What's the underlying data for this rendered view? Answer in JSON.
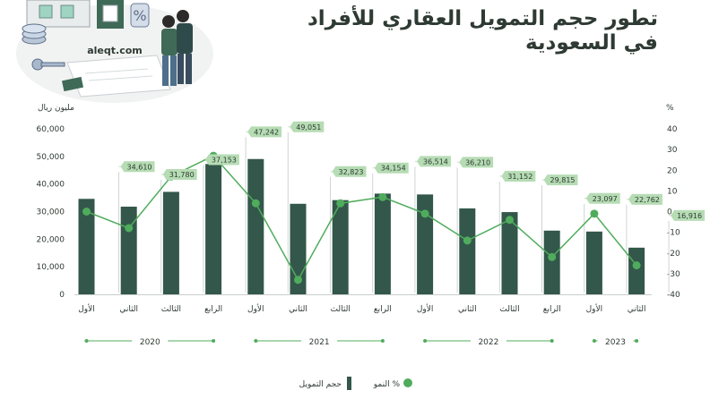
{
  "header": {
    "title_line1": "تطور حجم التمويل العقاري للأفراد",
    "title_line2": "في السعودية",
    "site": "aleqt.com"
  },
  "colors": {
    "bar": "#33574a",
    "line": "#4fac5c",
    "label_bg": "#b6dcb4",
    "text": "#2e3a33"
  },
  "chart_data": {
    "type": "bar",
    "categories": [
      "الأول",
      "الثاني",
      "الثالث",
      "الرابع",
      "الأول",
      "الثاني",
      "الثالث",
      "الرابع",
      "الأول",
      "الثاني",
      "الثالث",
      "الرابع",
      "الأول",
      "الثاني"
    ],
    "years": [
      {
        "label": "2020",
        "start": 0,
        "end": 3
      },
      {
        "label": "2021",
        "start": 4,
        "end": 7
      },
      {
        "label": "2022",
        "start": 8,
        "end": 11
      },
      {
        "label": "2023",
        "start": 12,
        "end": 13
      }
    ],
    "series": [
      {
        "name": "حجم التمويل",
        "type": "bar",
        "values": [
          34610,
          31780,
          37153,
          47242,
          49051,
          32823,
          34154,
          36514,
          36210,
          31152,
          29815,
          23097,
          22762,
          16916
        ]
      },
      {
        "name": "النمو %",
        "type": "line",
        "values": [
          0,
          -8,
          17,
          27,
          4,
          -33,
          4,
          7,
          -1,
          -14,
          -4,
          -22,
          -1,
          -26
        ]
      }
    ],
    "data_labels": [
      "34,610",
      "31,780",
      "37,153",
      "47,242",
      "49,051",
      "32,823",
      "34,154",
      "36,514",
      "36,210",
      "31,152",
      "29,815",
      "23,097",
      "22,762",
      "16,916"
    ],
    "ylabel_left": "مليون ريال",
    "ylabel_right": "%",
    "ylim_left": [
      0,
      60000
    ],
    "ylim_right": [
      -40,
      40
    ],
    "yticks_left": [
      "0",
      "10,000",
      "20,000",
      "30,000",
      "40,000",
      "50,000",
      "60,000"
    ],
    "yticks_right": [
      "-40",
      "-30",
      "-20",
      "-10",
      "0",
      "10",
      "20",
      "30",
      "40"
    ],
    "grid": false,
    "legend_position": "bottom-left"
  }
}
